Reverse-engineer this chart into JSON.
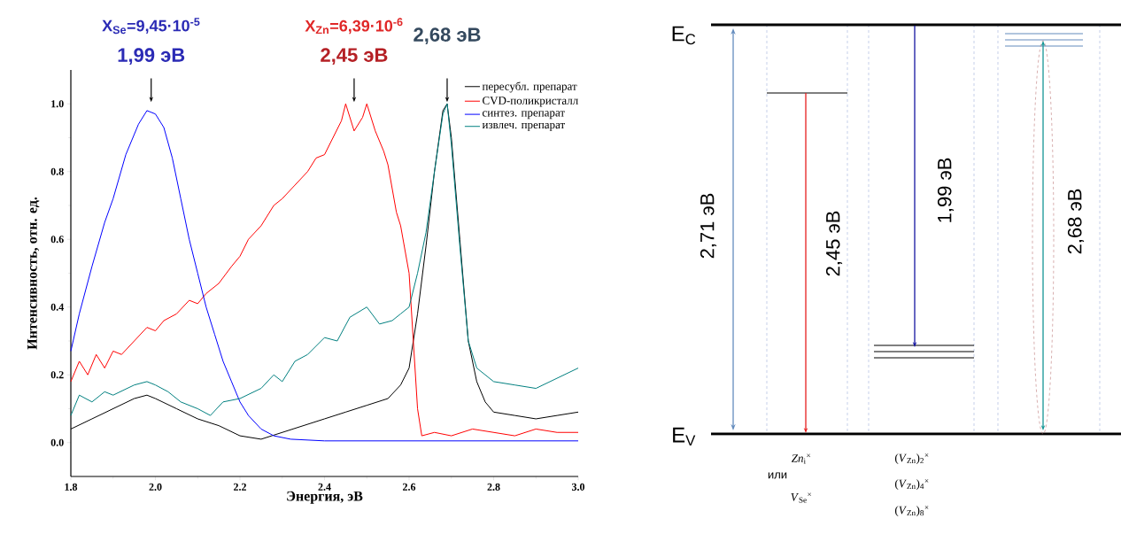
{
  "chart_data": [
    {
      "type": "line",
      "xlabel": "Энергия, эВ",
      "ylabel": "Интенсивность, отн. ед.",
      "xlim": [
        1.8,
        3.0
      ],
      "ylim": [
        -0.1,
        1.1
      ],
      "xticks": [
        {
          "value": 1.8,
          "label": "1.8"
        },
        {
          "value": 2.0,
          "label": "2.0"
        },
        {
          "value": 2.2,
          "label": "2.2"
        },
        {
          "value": 2.4,
          "label": "2.4"
        },
        {
          "value": 2.6,
          "label": "2.6"
        },
        {
          "value": 2.8,
          "label": "2.8"
        },
        {
          "value": 3.0,
          "label": "3.0"
        }
      ],
      "yticks": [
        {
          "value": 0.0,
          "label": "0.0"
        },
        {
          "value": 0.2,
          "label": "0.2"
        },
        {
          "value": 0.4,
          "label": "0.4"
        },
        {
          "value": 0.6,
          "label": "0.6"
        },
        {
          "value": 0.8,
          "label": "0.8"
        },
        {
          "value": 1.0,
          "label": "1.0"
        }
      ],
      "legend": "top right",
      "marker": "none",
      "line_style": "solid",
      "series": [
        {
          "name": "пересубл. препарат",
          "color": "#000000",
          "x": [
            1.8,
            1.85,
            1.9,
            1.95,
            1.98,
            2.0,
            2.05,
            2.1,
            2.15,
            2.2,
            2.25,
            2.3,
            2.35,
            2.4,
            2.45,
            2.5,
            2.55,
            2.58,
            2.6,
            2.62,
            2.64,
            2.66,
            2.68,
            2.69,
            2.7,
            2.72,
            2.74,
            2.76,
            2.78,
            2.8,
            2.85,
            2.9,
            2.95,
            3.0
          ],
          "values": [
            0.04,
            0.07,
            0.1,
            0.13,
            0.14,
            0.13,
            0.1,
            0.07,
            0.05,
            0.02,
            0.01,
            0.03,
            0.05,
            0.07,
            0.09,
            0.11,
            0.13,
            0.17,
            0.22,
            0.38,
            0.58,
            0.8,
            0.98,
            1.0,
            0.9,
            0.6,
            0.3,
            0.18,
            0.12,
            0.09,
            0.08,
            0.07,
            0.08,
            0.09
          ]
        },
        {
          "name": "CVD-поликристалл",
          "color": "#ff0000",
          "x": [
            1.8,
            1.82,
            1.84,
            1.86,
            1.88,
            1.9,
            1.92,
            1.95,
            1.98,
            2.0,
            2.02,
            2.05,
            2.08,
            2.1,
            2.12,
            2.15,
            2.18,
            2.2,
            2.22,
            2.25,
            2.28,
            2.3,
            2.33,
            2.36,
            2.38,
            2.4,
            2.42,
            2.44,
            2.45,
            2.47,
            2.49,
            2.5,
            2.52,
            2.54,
            2.55,
            2.57,
            2.58,
            2.6,
            2.61,
            2.62,
            2.63,
            2.66,
            2.7,
            2.75,
            2.8,
            2.85,
            2.9,
            2.95,
            3.0
          ],
          "values": [
            0.18,
            0.24,
            0.2,
            0.26,
            0.22,
            0.27,
            0.26,
            0.3,
            0.34,
            0.33,
            0.36,
            0.38,
            0.42,
            0.41,
            0.44,
            0.47,
            0.52,
            0.55,
            0.6,
            0.64,
            0.7,
            0.72,
            0.76,
            0.8,
            0.84,
            0.85,
            0.9,
            0.95,
            1.0,
            0.92,
            0.96,
            1.0,
            0.92,
            0.86,
            0.82,
            0.68,
            0.64,
            0.5,
            0.3,
            0.1,
            0.02,
            0.03,
            0.02,
            0.04,
            0.03,
            0.02,
            0.04,
            0.03,
            0.03
          ]
        },
        {
          "name": "синтез. препарат",
          "color": "#0000ff",
          "x": [
            1.8,
            1.82,
            1.85,
            1.88,
            1.9,
            1.93,
            1.96,
            1.98,
            2.0,
            2.02,
            2.04,
            2.06,
            2.08,
            2.1,
            2.12,
            2.14,
            2.16,
            2.18,
            2.2,
            2.22,
            2.25,
            2.28,
            2.32,
            2.4,
            2.6,
            3.0
          ],
          "values": [
            0.27,
            0.38,
            0.52,
            0.65,
            0.72,
            0.85,
            0.94,
            0.98,
            0.97,
            0.93,
            0.84,
            0.72,
            0.6,
            0.5,
            0.4,
            0.32,
            0.24,
            0.18,
            0.12,
            0.08,
            0.04,
            0.02,
            0.01,
            0.005,
            0.005,
            0.005
          ]
        },
        {
          "name": "извлеч. препарат",
          "color": "#008080",
          "x": [
            1.8,
            1.82,
            1.85,
            1.88,
            1.9,
            1.95,
            1.98,
            2.0,
            2.03,
            2.06,
            2.1,
            2.13,
            2.16,
            2.2,
            2.25,
            2.28,
            2.3,
            2.33,
            2.36,
            2.4,
            2.43,
            2.46,
            2.5,
            2.53,
            2.56,
            2.58,
            2.6,
            2.62,
            2.64,
            2.66,
            2.68,
            2.69,
            2.7,
            2.72,
            2.74,
            2.76,
            2.8,
            2.85,
            2.9,
            2.95,
            3.0
          ],
          "values": [
            0.08,
            0.14,
            0.12,
            0.15,
            0.14,
            0.17,
            0.18,
            0.17,
            0.15,
            0.12,
            0.1,
            0.08,
            0.12,
            0.13,
            0.16,
            0.2,
            0.18,
            0.24,
            0.26,
            0.31,
            0.3,
            0.37,
            0.4,
            0.35,
            0.36,
            0.38,
            0.4,
            0.5,
            0.62,
            0.8,
            0.97,
            1.0,
            0.88,
            0.58,
            0.3,
            0.22,
            0.18,
            0.17,
            0.16,
            0.19,
            0.22
          ]
        }
      ],
      "annotations": [
        "1,99 эВ",
        "2,45 эВ",
        "2,68 эВ",
        "X$_{Se}$=9,45·10$^{-5}$",
        "X$_{Zn}$=6,39·10$^{-6}$"
      ]
    },
    {
      "type": "other",
      "annotations": [
        "E$_{C}$",
        "E$_{V}$",
        "2,71 эВ",
        "2,45 эВ",
        "1,99 эВ",
        "2,68 эВ",
        "*Zn*$_{i}$$^{×}$",
        "или",
        "*V*$_{Se}$$^{×}$",
        "(*V*$_{Zn}$)$_{2}$$^{×}$",
        "(*V*$_{Zn}$)$_{4}$$^{×}$",
        "(*V*$_{Zn}$)$_{8}$$^{×}$"
      ]
    }
  ]
}
